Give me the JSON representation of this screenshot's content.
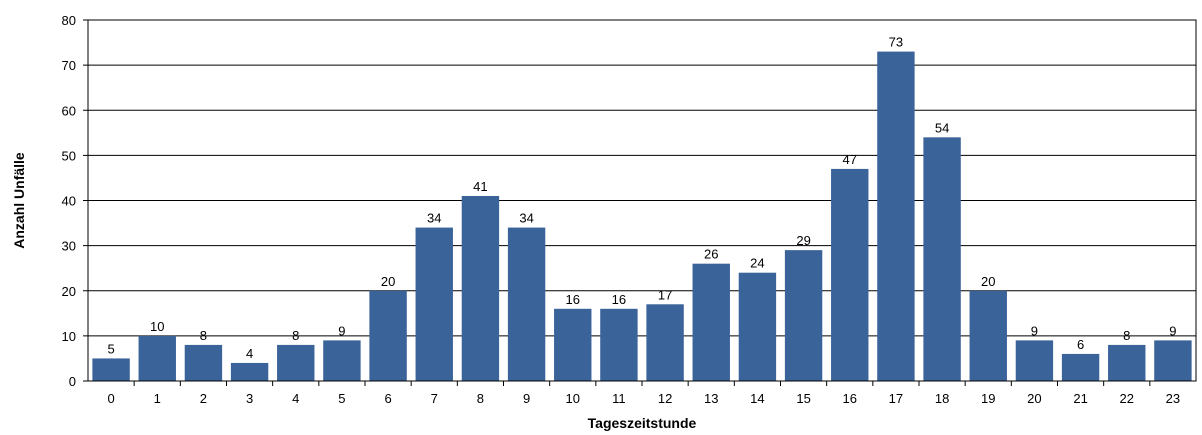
{
  "chart_data": {
    "type": "bar",
    "title": "",
    "xlabel": "Tageszeitstunde",
    "ylabel": "Anzahl Unfälle",
    "ylim": [
      0,
      80
    ],
    "yticks": [
      0,
      10,
      20,
      30,
      40,
      50,
      60,
      70,
      80
    ],
    "grid": true,
    "legend": "none",
    "bar_color": "#3A6399",
    "categories": [
      "0",
      "1",
      "2",
      "3",
      "4",
      "5",
      "6",
      "7",
      "8",
      "9",
      "10",
      "11",
      "12",
      "13",
      "14",
      "15",
      "16",
      "17",
      "18",
      "19",
      "20",
      "21",
      "22",
      "23"
    ],
    "values": [
      5,
      10,
      8,
      4,
      8,
      9,
      20,
      34,
      41,
      34,
      16,
      16,
      17,
      26,
      24,
      29,
      47,
      73,
      54,
      20,
      9,
      6,
      8,
      9
    ]
  }
}
